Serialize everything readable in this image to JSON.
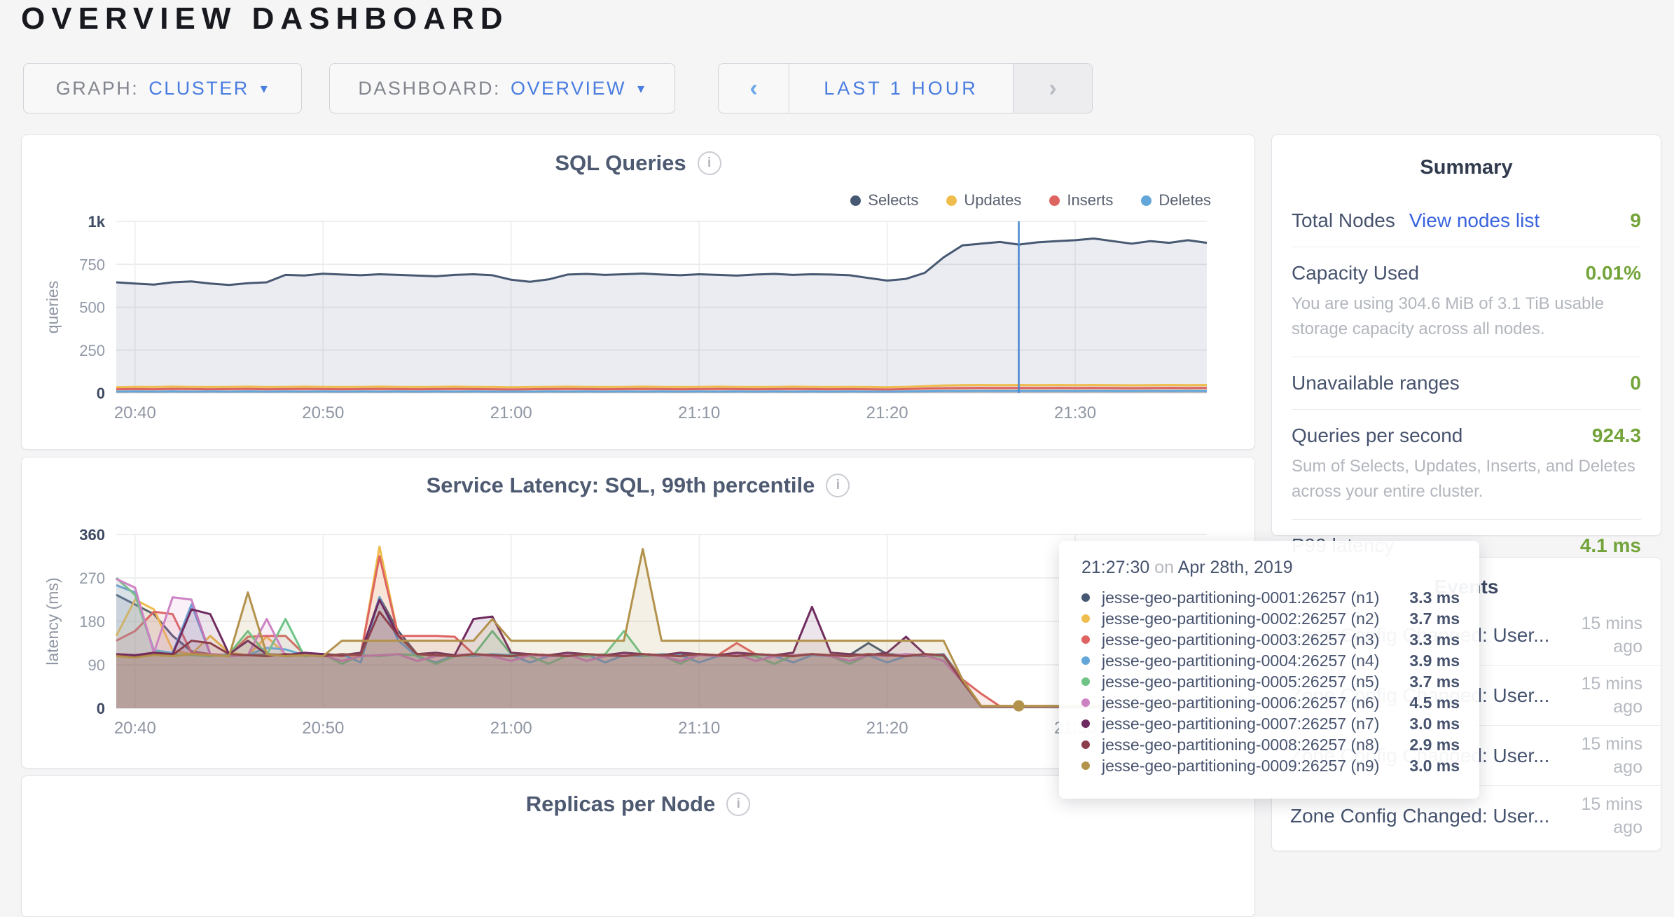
{
  "page": {
    "title": "OVERVIEW DASHBOARD"
  },
  "colors": {
    "accent_blue": "#4a7de0",
    "link_blue": "#3a63de",
    "value_green": "#73a43a",
    "crosshair_blue": "#4b87cf"
  },
  "icons": {
    "info": "i",
    "caret_down": "▾",
    "chevron_left": "‹",
    "chevron_right": "›"
  },
  "controls": {
    "graph": {
      "label": "GRAPH:",
      "value": "CLUSTER"
    },
    "dashboard": {
      "label": "DASHBOARD:",
      "value": "OVERVIEW"
    },
    "time_range": {
      "prev": "‹",
      "label": "LAST 1 HOUR",
      "next": "›"
    }
  },
  "summary": {
    "title": "Summary",
    "rows": [
      {
        "label": "Total Nodes",
        "link": "View nodes list",
        "value": "9"
      },
      {
        "label": "Capacity Used",
        "value": "0.01%",
        "caption": "You are using 304.6 MiB of 3.1 TiB usable storage capacity across all nodes."
      },
      {
        "label": "Unavailable ranges",
        "value": "0"
      },
      {
        "label": "Queries per second",
        "value": "924.3",
        "caption": "Sum of Selects, Updates, Inserts, and Deletes across your entire cluster."
      },
      {
        "label": "P99 latency",
        "value": "4.1 ms"
      }
    ]
  },
  "events": {
    "title": "Events",
    "rows": [
      {
        "text": "Zone Config Changed: User...",
        "time": "15 mins ago"
      },
      {
        "text": "Zone Config Changed: User...",
        "time": "15 mins ago"
      },
      {
        "text": "Zone Config Changed: User...",
        "time": "15 mins ago"
      },
      {
        "text": "Zone Config Changed: User...",
        "time": "15 mins ago"
      }
    ]
  },
  "tooltip": {
    "time": "21:27:30",
    "on": "on",
    "date": "Apr 28th, 2019",
    "rows": [
      {
        "latency": "3.3 ms"
      },
      {
        "latency": "3.7 ms"
      },
      {
        "latency": "3.3 ms"
      },
      {
        "latency": "3.9 ms"
      },
      {
        "latency": "3.7 ms"
      },
      {
        "latency": "4.5 ms"
      },
      {
        "latency": "3.0 ms"
      },
      {
        "latency": "2.9 ms"
      },
      {
        "latency": "3.0 ms"
      }
    ]
  },
  "chart_data": [
    {
      "id": "sql-queries",
      "type": "area",
      "title": "SQL Queries",
      "ylabel": "queries",
      "ylim": [
        0,
        1000
      ],
      "x_minutes": 58,
      "grid": true,
      "legend_position": "top-right",
      "yticks": [
        {
          "v": 0,
          "label": "0"
        },
        {
          "v": 250,
          "label": "250"
        },
        {
          "v": 500,
          "label": "500"
        },
        {
          "v": 750,
          "label": "750"
        },
        {
          "v": 1000,
          "label": "1k"
        }
      ],
      "xticks": [
        {
          "t": 1,
          "label": "20:40"
        },
        {
          "t": 11,
          "label": "20:50"
        },
        {
          "t": 21,
          "label": "21:00"
        },
        {
          "t": 31,
          "label": "21:10"
        },
        {
          "t": 41,
          "label": "21:20"
        },
        {
          "t": 51,
          "label": "21:30"
        }
      ],
      "crosshair": {
        "t": 48,
        "time": "21:27:30"
      },
      "series": [
        {
          "name": "Selects",
          "color": "#475872",
          "fill": "rgba(93,112,145,0.13)",
          "values": [
            645,
            638,
            632,
            645,
            650,
            638,
            630,
            640,
            645,
            688,
            685,
            695,
            690,
            686,
            692,
            688,
            684,
            680,
            688,
            692,
            686,
            660,
            648,
            662,
            690,
            694,
            688,
            692,
            696,
            690,
            686,
            692,
            688,
            684,
            690,
            694,
            688,
            692,
            690,
            686,
            670,
            655,
            665,
            700,
            790,
            860,
            870,
            880,
            865,
            878,
            885,
            890,
            900,
            885,
            870,
            885,
            875,
            890,
            875
          ]
        },
        {
          "name": "Updates",
          "color": "#eebd4e",
          "fill": "rgba(238,189,78,0.18)",
          "values": [
            34,
            36,
            35,
            37,
            36,
            35,
            36,
            37,
            35,
            36,
            37,
            36,
            35,
            36,
            37,
            36,
            35,
            36,
            37,
            36,
            35,
            34,
            35,
            36,
            37,
            36,
            35,
            36,
            37,
            36,
            35,
            36,
            37,
            36,
            35,
            36,
            37,
            36,
            35,
            36,
            35,
            34,
            36,
            40,
            44,
            46,
            47,
            46,
            47,
            46,
            47,
            46,
            47,
            46,
            45,
            46,
            47,
            46,
            47
          ]
        },
        {
          "name": "Inserts",
          "color": "#dd6461",
          "fill": "rgba(221,100,97,0.18)",
          "values": [
            22,
            23,
            22,
            24,
            23,
            22,
            23,
            24,
            22,
            23,
            24,
            23,
            22,
            23,
            24,
            23,
            22,
            23,
            24,
            23,
            22,
            21,
            22,
            23,
            24,
            23,
            22,
            23,
            24,
            23,
            22,
            23,
            24,
            23,
            22,
            23,
            24,
            23,
            22,
            23,
            22,
            21,
            23,
            26,
            28,
            29,
            30,
            29,
            30,
            29,
            30,
            29,
            30,
            29,
            28,
            29,
            30,
            29,
            30
          ]
        },
        {
          "name": "Deletes",
          "color": "#63a6d9",
          "fill": "rgba(99,166,217,0.18)",
          "values": [
            8,
            9,
            8,
            9,
            8,
            9,
            8,
            9,
            8,
            9,
            8,
            9,
            8,
            9,
            8,
            9,
            8,
            9,
            8,
            9,
            8,
            8,
            8,
            9,
            8,
            9,
            8,
            9,
            8,
            9,
            8,
            9,
            8,
            9,
            8,
            9,
            8,
            9,
            8,
            9,
            8,
            8,
            9,
            10,
            11,
            11,
            12,
            11,
            12,
            11,
            12,
            11,
            12,
            11,
            11,
            12,
            11,
            12,
            11
          ]
        }
      ]
    },
    {
      "id": "service-latency",
      "type": "area",
      "title": "Service Latency: SQL, 99th percentile",
      "ylabel": "latency (ms)",
      "ylim": [
        0,
        360
      ],
      "x_minutes": 58,
      "grid": true,
      "legend_position": "none",
      "yticks": [
        {
          "v": 0,
          "label": "0"
        },
        {
          "v": 90,
          "label": "90"
        },
        {
          "v": 180,
          "label": "180"
        },
        {
          "v": 270,
          "label": "270"
        },
        {
          "v": 360,
          "label": "360"
        }
      ],
      "xticks": [
        {
          "t": 1,
          "label": "20:40"
        },
        {
          "t": 11,
          "label": "20:50"
        },
        {
          "t": 21,
          "label": "21:00"
        },
        {
          "t": 31,
          "label": "21:10"
        },
        {
          "t": 41,
          "label": "21:20"
        },
        {
          "t": 51,
          "label": "21:30"
        }
      ],
      "marker": {
        "t": 48,
        "v": 5
      },
      "series": [
        {
          "name": "jesse-geo-partitioning-0001:26257 (n1)",
          "color": "#475872",
          "fill": "rgba(71,88,114,0.12)",
          "values": [
            235,
            215,
            195,
            150,
            118,
            112,
            108,
            110,
            112,
            108,
            110,
            112,
            108,
            110,
            230,
            160,
            112,
            108,
            110,
            112,
            108,
            110,
            112,
            108,
            110,
            112,
            108,
            110,
            112,
            108,
            110,
            112,
            108,
            110,
            112,
            108,
            110,
            112,
            108,
            110,
            135,
            112,
            110,
            108,
            112,
            60,
            4,
            4,
            4,
            4,
            4,
            4,
            4,
            4,
            4,
            4,
            4,
            4,
            4
          ]
        },
        {
          "name": "jesse-geo-partitioning-0002:26257 (n2)",
          "color": "#eebd4e",
          "fill": "rgba(238,189,78,0.12)",
          "values": [
            150,
            225,
            205,
            120,
            112,
            150,
            115,
            110,
            148,
            112,
            108,
            112,
            110,
            108,
            335,
            150,
            112,
            110,
            108,
            112,
            110,
            108,
            112,
            110,
            108,
            112,
            110,
            108,
            112,
            110,
            108,
            112,
            110,
            108,
            112,
            110,
            108,
            112,
            110,
            108,
            112,
            110,
            108,
            112,
            110,
            60,
            4,
            4,
            4,
            4,
            4,
            4,
            4,
            4,
            4,
            4,
            18,
            4,
            4
          ]
        },
        {
          "name": "jesse-geo-partitioning-0003:26257 (n3)",
          "color": "#dd6461",
          "fill": "rgba(221,100,97,0.12)",
          "values": [
            140,
            160,
            200,
            195,
            115,
            112,
            110,
            148,
            150,
            150,
            112,
            110,
            108,
            112,
            315,
            150,
            150,
            150,
            148,
            112,
            110,
            108,
            112,
            110,
            108,
            112,
            110,
            108,
            112,
            110,
            108,
            112,
            110,
            135,
            112,
            110,
            108,
            112,
            110,
            108,
            112,
            110,
            108,
            112,
            110,
            60,
            30,
            4,
            4,
            4,
            4,
            4,
            4,
            4,
            4,
            4,
            4,
            4,
            4
          ]
        },
        {
          "name": "jesse-geo-partitioning-0004:26257 (n4)",
          "color": "#63a6d9",
          "fill": "rgba(99,166,217,0.12)",
          "values": [
            255,
            240,
            120,
            115,
            215,
            112,
            108,
            110,
            125,
            122,
            110,
            108,
            112,
            95,
            230,
            140,
            108,
            95,
            110,
            108,
            112,
            110,
            95,
            108,
            110,
            112,
            95,
            110,
            108,
            112,
            110,
            95,
            108,
            110,
            112,
            108,
            95,
            110,
            108,
            112,
            110,
            95,
            108,
            110,
            112,
            55,
            4,
            4,
            4,
            4,
            4,
            4,
            4,
            4,
            4,
            4,
            4,
            4,
            4
          ]
        },
        {
          "name": "jesse-geo-partitioning-0005:26257 (n5)",
          "color": "#6fc387",
          "fill": "rgba(111,195,135,0.12)",
          "values": [
            270,
            235,
            118,
            112,
            110,
            108,
            112,
            160,
            110,
            185,
            108,
            112,
            92,
            110,
            108,
            112,
            110,
            92,
            108,
            110,
            160,
            112,
            108,
            92,
            110,
            108,
            112,
            160,
            108,
            110,
            92,
            112,
            108,
            110,
            108,
            92,
            110,
            112,
            108,
            92,
            110,
            108,
            112,
            110,
            108,
            55,
            4,
            4,
            4,
            4,
            4,
            4,
            4,
            4,
            4,
            4,
            4,
            4,
            4
          ]
        },
        {
          "name": "jesse-geo-partitioning-0006:26257 (n6)",
          "color": "#cd82c4",
          "fill": "rgba(205,130,196,0.12)",
          "values": [
            268,
            250,
            115,
            230,
            225,
            112,
            108,
            110,
            185,
            108,
            112,
            110,
            98,
            108,
            110,
            112,
            98,
            108,
            110,
            112,
            108,
            98,
            110,
            108,
            112,
            98,
            108,
            110,
            112,
            108,
            98,
            110,
            108,
            112,
            98,
            108,
            110,
            112,
            108,
            98,
            110,
            108,
            112,
            110,
            98,
            55,
            4,
            4,
            4,
            4,
            4,
            4,
            4,
            4,
            4,
            4,
            4,
            4,
            4
          ]
        },
        {
          "name": "jesse-geo-partitioning-0007:26257 (n7)",
          "color": "#6f2b5f",
          "fill": "rgba(111,43,95,0.12)",
          "values": [
            112,
            110,
            115,
            112,
            205,
            195,
            112,
            140,
            112,
            110,
            115,
            112,
            110,
            115,
            225,
            150,
            112,
            115,
            110,
            185,
            190,
            115,
            112,
            110,
            115,
            112,
            110,
            115,
            112,
            110,
            115,
            112,
            110,
            115,
            112,
            110,
            115,
            210,
            115,
            112,
            110,
            115,
            148,
            112,
            110,
            55,
            4,
            4,
            4,
            4,
            4,
            4,
            4,
            4,
            4,
            4,
            4,
            4,
            4
          ]
        },
        {
          "name": "jesse-geo-partitioning-0008:26257 (n8)",
          "color": "#8d3e4b",
          "fill": "rgba(141,62,75,0.12)",
          "values": [
            110,
            106,
            112,
            110,
            140,
            135,
            112,
            110,
            108,
            112,
            110,
            108,
            112,
            110,
            200,
            150,
            112,
            110,
            108,
            112,
            110,
            108,
            112,
            110,
            108,
            112,
            110,
            108,
            112,
            110,
            108,
            112,
            110,
            108,
            112,
            110,
            108,
            112,
            110,
            108,
            112,
            110,
            108,
            112,
            110,
            55,
            4,
            4,
            4,
            4,
            4,
            4,
            4,
            4,
            4,
            4,
            4,
            4,
            4
          ]
        },
        {
          "name": "jesse-geo-partitioning-0009:26257 (n9)",
          "color": "#b3924c",
          "fill": "rgba(179,146,76,0.14)",
          "values": [
            108,
            105,
            110,
            108,
            112,
            110,
            108,
            240,
            112,
            108,
            110,
            108,
            140,
            140,
            140,
            140,
            140,
            140,
            140,
            140,
            185,
            140,
            140,
            140,
            140,
            140,
            140,
            140,
            330,
            140,
            140,
            140,
            140,
            140,
            140,
            140,
            140,
            140,
            140,
            140,
            140,
            140,
            140,
            140,
            140,
            60,
            5,
            5,
            5,
            5,
            5,
            5,
            5,
            5,
            5,
            5,
            5,
            5,
            5
          ]
        }
      ]
    },
    {
      "id": "replicas-per-node",
      "type": "area",
      "title": "Replicas per Node",
      "series": []
    }
  ]
}
